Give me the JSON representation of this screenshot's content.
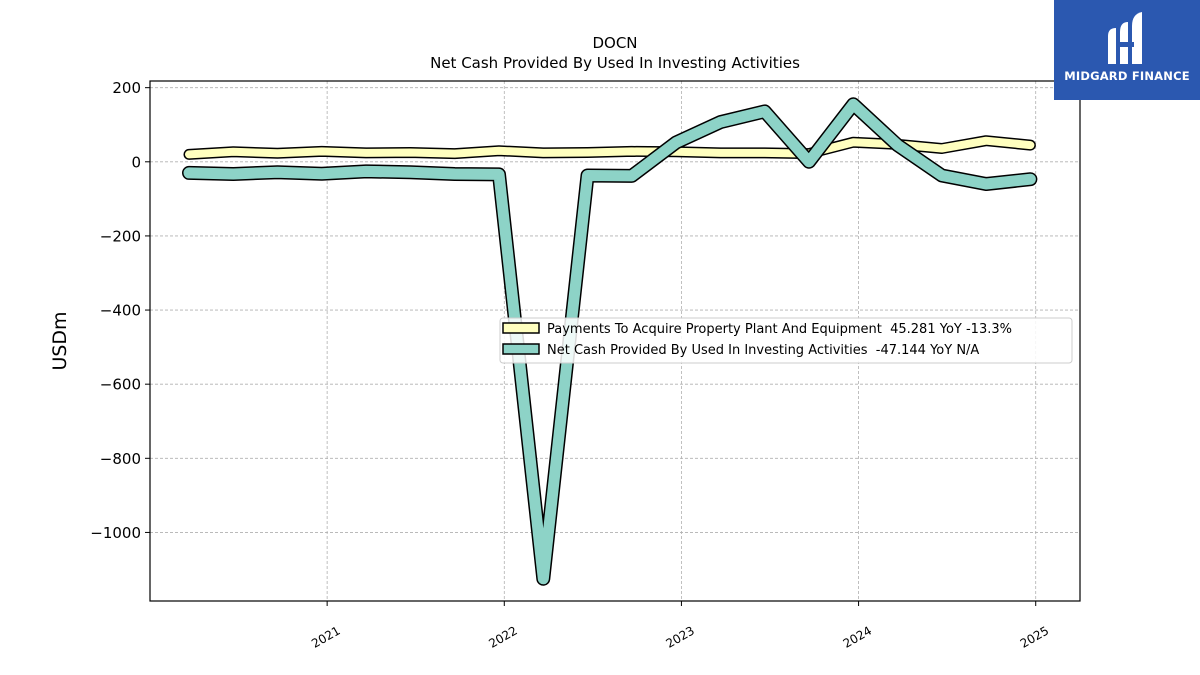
{
  "brand": {
    "name": "MIDGARD FINANCE",
    "bg_color": "#2b58b0"
  },
  "chart_data": {
    "type": "line",
    "title": "DOCN",
    "subtitle": "Net Cash Provided By Used In Investing Activities",
    "ylabel": "USDm",
    "xlabel": "",
    "ylim": [
      -1185,
      218
    ],
    "xlim": [
      2020.0,
      2025.25
    ],
    "yticks": [
      200,
      0,
      -200,
      -400,
      -600,
      -800,
      -1000
    ],
    "ytick_labels": [
      "200",
      "0",
      "−200",
      "−400",
      "−600",
      "−800",
      "−1000"
    ],
    "xticks": [
      2021,
      2022,
      2023,
      2024,
      2025
    ],
    "xtick_labels": [
      "2021",
      "2022",
      "2023",
      "2024",
      "2025"
    ],
    "grid": true,
    "legend_position": "center-right",
    "series": [
      {
        "name": "Payments To Acquire Property Plant And Equipment  45.281 YoY -13.3%",
        "color": "#ffffbf",
        "x": [
          2020.22,
          2020.47,
          2020.72,
          2020.97,
          2021.22,
          2021.47,
          2021.72,
          2021.97,
          2022.22,
          2022.47,
          2022.72,
          2022.97,
          2023.22,
          2023.47,
          2023.72,
          2023.97,
          2024.22,
          2024.47,
          2024.72,
          2024.97
        ],
        "values": [
          20,
          27,
          23,
          28,
          24,
          25,
          22,
          30,
          24,
          25,
          28,
          27,
          24,
          24,
          22,
          53,
          47,
          36,
          57,
          45
        ]
      },
      {
        "name": "Net Cash Provided By Used In Investing Activities  -47.144 YoY N/A",
        "color": "#8dd3c7",
        "x": [
          2020.22,
          2020.47,
          2020.72,
          2020.97,
          2021.22,
          2021.47,
          2021.72,
          2021.97,
          2022.22,
          2022.47,
          2022.72,
          2022.97,
          2023.22,
          2023.47,
          2023.72,
          2023.97,
          2024.22,
          2024.47,
          2024.72,
          2024.97
        ],
        "values": [
          -30,
          -33,
          -28,
          -32,
          -26,
          -28,
          -33,
          -34,
          -1125,
          -37,
          -38,
          52,
          107,
          136,
          0,
          155,
          45,
          -37,
          -60,
          -47
        ]
      }
    ]
  }
}
